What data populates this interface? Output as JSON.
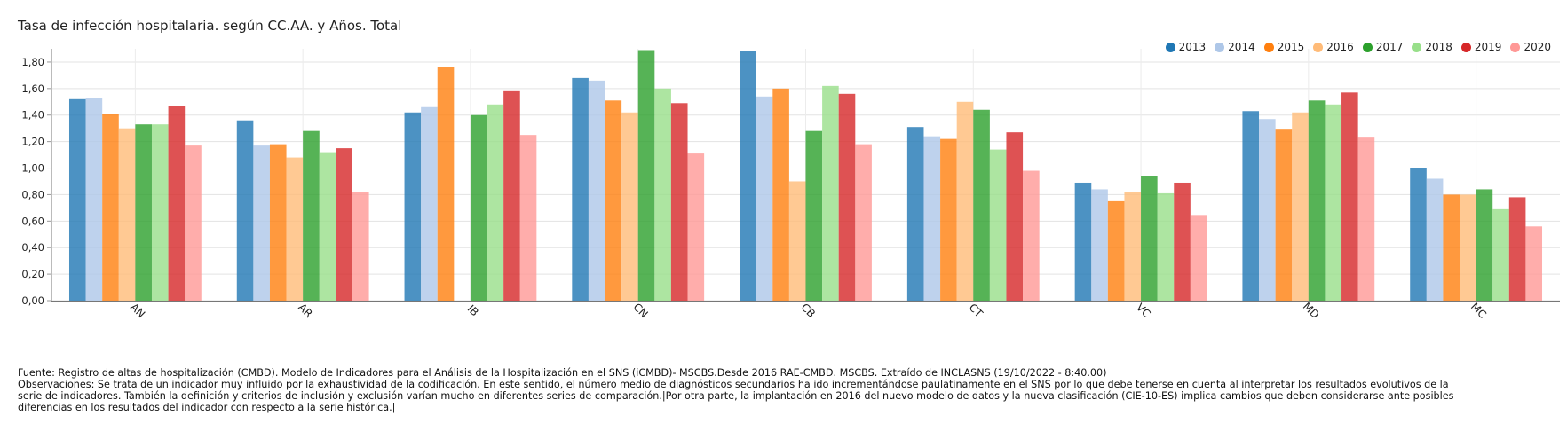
{
  "chart_data": {
    "type": "bar",
    "title": "Tasa de infección hospitalaria. según CC.AA. y Años. Total",
    "xlabel": "",
    "ylabel": "",
    "ylim": [
      0,
      1.9
    ],
    "yticks": [
      0,
      0.2,
      0.4,
      0.6,
      0.8,
      1.0,
      1.2,
      1.4,
      1.6,
      1.8
    ],
    "ytick_labels": [
      "0,00",
      "0,20",
      "0,40",
      "0,60",
      "0,80",
      "1,00",
      "1,20",
      "1,40",
      "1,60",
      "1,80"
    ],
    "categories": [
      "AN",
      "AR",
      "IB",
      "CN",
      "CB",
      "CT",
      "VC",
      "MD",
      "MC"
    ],
    "legend_position": "top-right",
    "grid": true,
    "series": [
      {
        "name": "2013",
        "color": "#1f77b4",
        "values": [
          1.52,
          1.36,
          1.42,
          1.68,
          1.88,
          1.31,
          0.89,
          1.43,
          1.0
        ]
      },
      {
        "name": "2014",
        "color": "#aec7e8",
        "values": [
          1.53,
          1.17,
          1.46,
          1.66,
          1.54,
          1.24,
          0.84,
          1.37,
          0.92
        ]
      },
      {
        "name": "2015",
        "color": "#ff7f0e",
        "values": [
          1.41,
          1.18,
          1.76,
          1.51,
          1.6,
          1.22,
          0.75,
          1.29,
          0.8
        ]
      },
      {
        "name": "2016",
        "color": "#ffbb78",
        "values": [
          1.3,
          1.08,
          null,
          1.42,
          0.9,
          1.5,
          0.82,
          1.42,
          0.8
        ]
      },
      {
        "name": "2017",
        "color": "#2ca02c",
        "values": [
          1.33,
          1.28,
          1.4,
          1.89,
          1.28,
          1.44,
          0.94,
          1.51,
          0.84
        ]
      },
      {
        "name": "2018",
        "color": "#98df8a",
        "values": [
          1.33,
          1.12,
          1.48,
          1.6,
          1.62,
          1.14,
          0.81,
          1.48,
          0.69
        ]
      },
      {
        "name": "2019",
        "color": "#d62728",
        "values": [
          1.47,
          1.15,
          1.58,
          1.49,
          1.56,
          1.27,
          0.89,
          1.57,
          0.78
        ]
      },
      {
        "name": "2020",
        "color": "#ff9896",
        "values": [
          1.17,
          0.82,
          1.25,
          1.11,
          1.18,
          0.98,
          0.64,
          1.23,
          0.56
        ]
      }
    ]
  },
  "footer": {
    "source": "Fuente: Registro de altas de hospitalización (CMBD). Modelo de Indicadores para el Análisis de la Hospitalización en el SNS (iCMBD)- MSCBS.Desde 2016 RAE-CMBD. MSCBS. Extraído de INCLASNS (19/10/2022 - 8:40.00)",
    "observations": "Observaciones: Se trata de un indicador muy influido por la exhaustividad de la codificación. En este sentido, el número medio de diagnósticos secundarios ha ido incrementándose paulatinamente en el SNS por lo que debe tenerse en cuenta al interpretar los resultados evolutivos de la serie de indicadores. También la definición y criterios de inclusión y exclusión varían mucho en diferentes series de comparación.|Por otra parte, la implantación en 2016 del nuevo modelo de datos y la nueva clasificación (CIE-10-ES) implica cambios que deben considerarse ante posibles diferencias en los resultados del indicador con respecto a la serie histórica.|"
  }
}
